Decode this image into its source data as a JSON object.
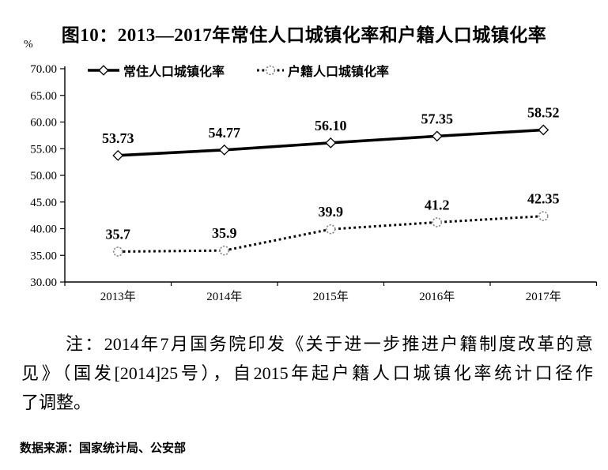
{
  "figure": {
    "title": "图10：2013—2017年常住人口城镇化率和户籍人口城镇化率",
    "percent_label": "%"
  },
  "chart_data": {
    "type": "line",
    "title": "图10：2013—2017年常住人口城镇化率和户籍人口城镇化率",
    "categories": [
      "2013年",
      "2014年",
      "2015年",
      "2016年",
      "2017年"
    ],
    "series": [
      {
        "name": "常住人口城镇化率",
        "values": [
          53.73,
          54.77,
          56.1,
          57.35,
          58.52
        ],
        "labels": [
          "53.73",
          "54.77",
          "56.10",
          "57.35",
          "58.52"
        ],
        "line_style": "solid",
        "marker": "diamond",
        "color": "#000000"
      },
      {
        "name": "户籍人口城镇化率",
        "values": [
          35.7,
          35.9,
          39.9,
          41.2,
          42.35
        ],
        "labels": [
          "35.7",
          "35.9",
          "39.9",
          "41.2",
          "42.35"
        ],
        "line_style": "dotted",
        "marker": "circle",
        "color": "#000000"
      }
    ],
    "ylabel": "%",
    "ylim": [
      30,
      70
    ],
    "ytick_step": 5,
    "ytick_labels": [
      "30.00",
      "35.00",
      "40.00",
      "45.00",
      "50.00",
      "55.00",
      "60.00",
      "65.00",
      "70.00"
    ],
    "grid": false,
    "legend_position": "top-inside"
  },
  "note": {
    "lines": [
      "注：2014年7月国务院印发《关于进一步推进户籍制度改革的意",
      "见》（国发[2014]25号），自2015年起户籍人口城镇化率统计口径作",
      "了调整。"
    ]
  },
  "source": "数据来源：国家统计局、公安部"
}
